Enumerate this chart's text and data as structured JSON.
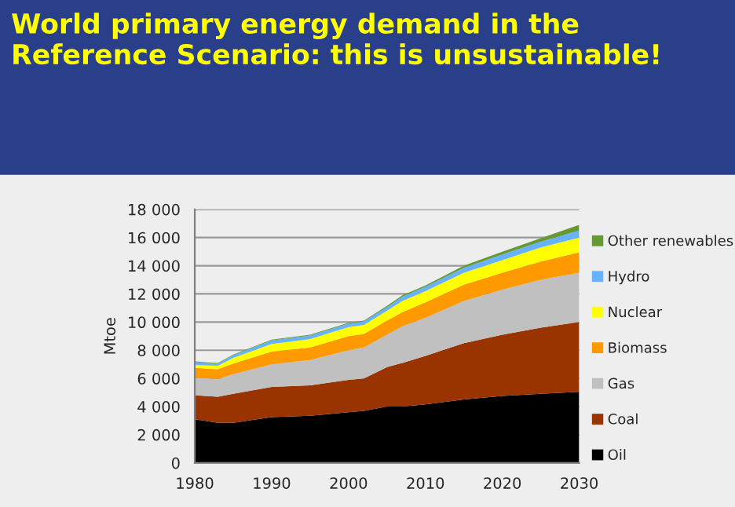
{
  "chart_data": {
    "type": "area",
    "stacked": true,
    "title": "World primary energy demand in the Reference Scenario: this is unsustainable!",
    "ylabel": "Mtoe",
    "x": [
      1980,
      1983,
      1985,
      1990,
      1995,
      2000,
      2002,
      2005,
      2007,
      2010,
      2015,
      2020,
      2025,
      2030
    ],
    "series": [
      {
        "name": "Oil",
        "color": "#000000",
        "values": [
          3100,
          2850,
          2850,
          3250,
          3350,
          3600,
          3700,
          4000,
          4000,
          4150,
          4500,
          4750,
          4900,
          5050
        ]
      },
      {
        "name": "Coal",
        "color": "#993300",
        "values": [
          1700,
          1850,
          2050,
          2150,
          2150,
          2300,
          2300,
          2800,
          3100,
          3450,
          4000,
          4350,
          4700,
          4950
        ]
      },
      {
        "name": "Gas",
        "color": "#c0c0c0",
        "values": [
          1250,
          1250,
          1400,
          1600,
          1800,
          2100,
          2200,
          2300,
          2600,
          2700,
          3000,
          3200,
          3400,
          3500
        ]
      },
      {
        "name": "Biomass",
        "color": "#ff9900",
        "values": [
          700,
          700,
          750,
          900,
          900,
          1000,
          950,
          1000,
          1000,
          1100,
          1150,
          1200,
          1300,
          1450
        ]
      },
      {
        "name": "Nuclear",
        "color": "#ffff00",
        "values": [
          200,
          250,
          400,
          550,
          600,
          650,
          650,
          700,
          800,
          800,
          850,
          900,
          1000,
          1050
        ]
      },
      {
        "name": "Hydro",
        "color": "#66b2ff",
        "values": [
          200,
          150,
          200,
          250,
          250,
          250,
          250,
          250,
          300,
          300,
          350,
          400,
          400,
          500
        ]
      },
      {
        "name": "Other renewables",
        "color": "#669933",
        "values": [
          50,
          50,
          50,
          50,
          50,
          50,
          50,
          100,
          100,
          100,
          150,
          200,
          250,
          400
        ]
      }
    ],
    "xlim": [
      1980,
      2030
    ],
    "xticks": [
      1980,
      1990,
      2000,
      2010,
      2020,
      2030
    ],
    "ylim": [
      0,
      18000
    ],
    "yticks": [
      0,
      {
        "value": 2000,
        "label": "2 000"
      },
      {
        "value": 4000,
        "label": "4 000"
      },
      {
        "value": 6000,
        "label": "6 000"
      },
      {
        "value": 8000,
        "label": "8 000"
      },
      {
        "value": 10000,
        "label": "10 000"
      },
      {
        "value": 12000,
        "label": "12 000"
      },
      {
        "value": 14000,
        "label": "14 000"
      },
      {
        "value": 16000,
        "label": "16 000"
      },
      {
        "value": 18000,
        "label": "18 000"
      }
    ],
    "grid": "y",
    "legend": "right"
  }
}
